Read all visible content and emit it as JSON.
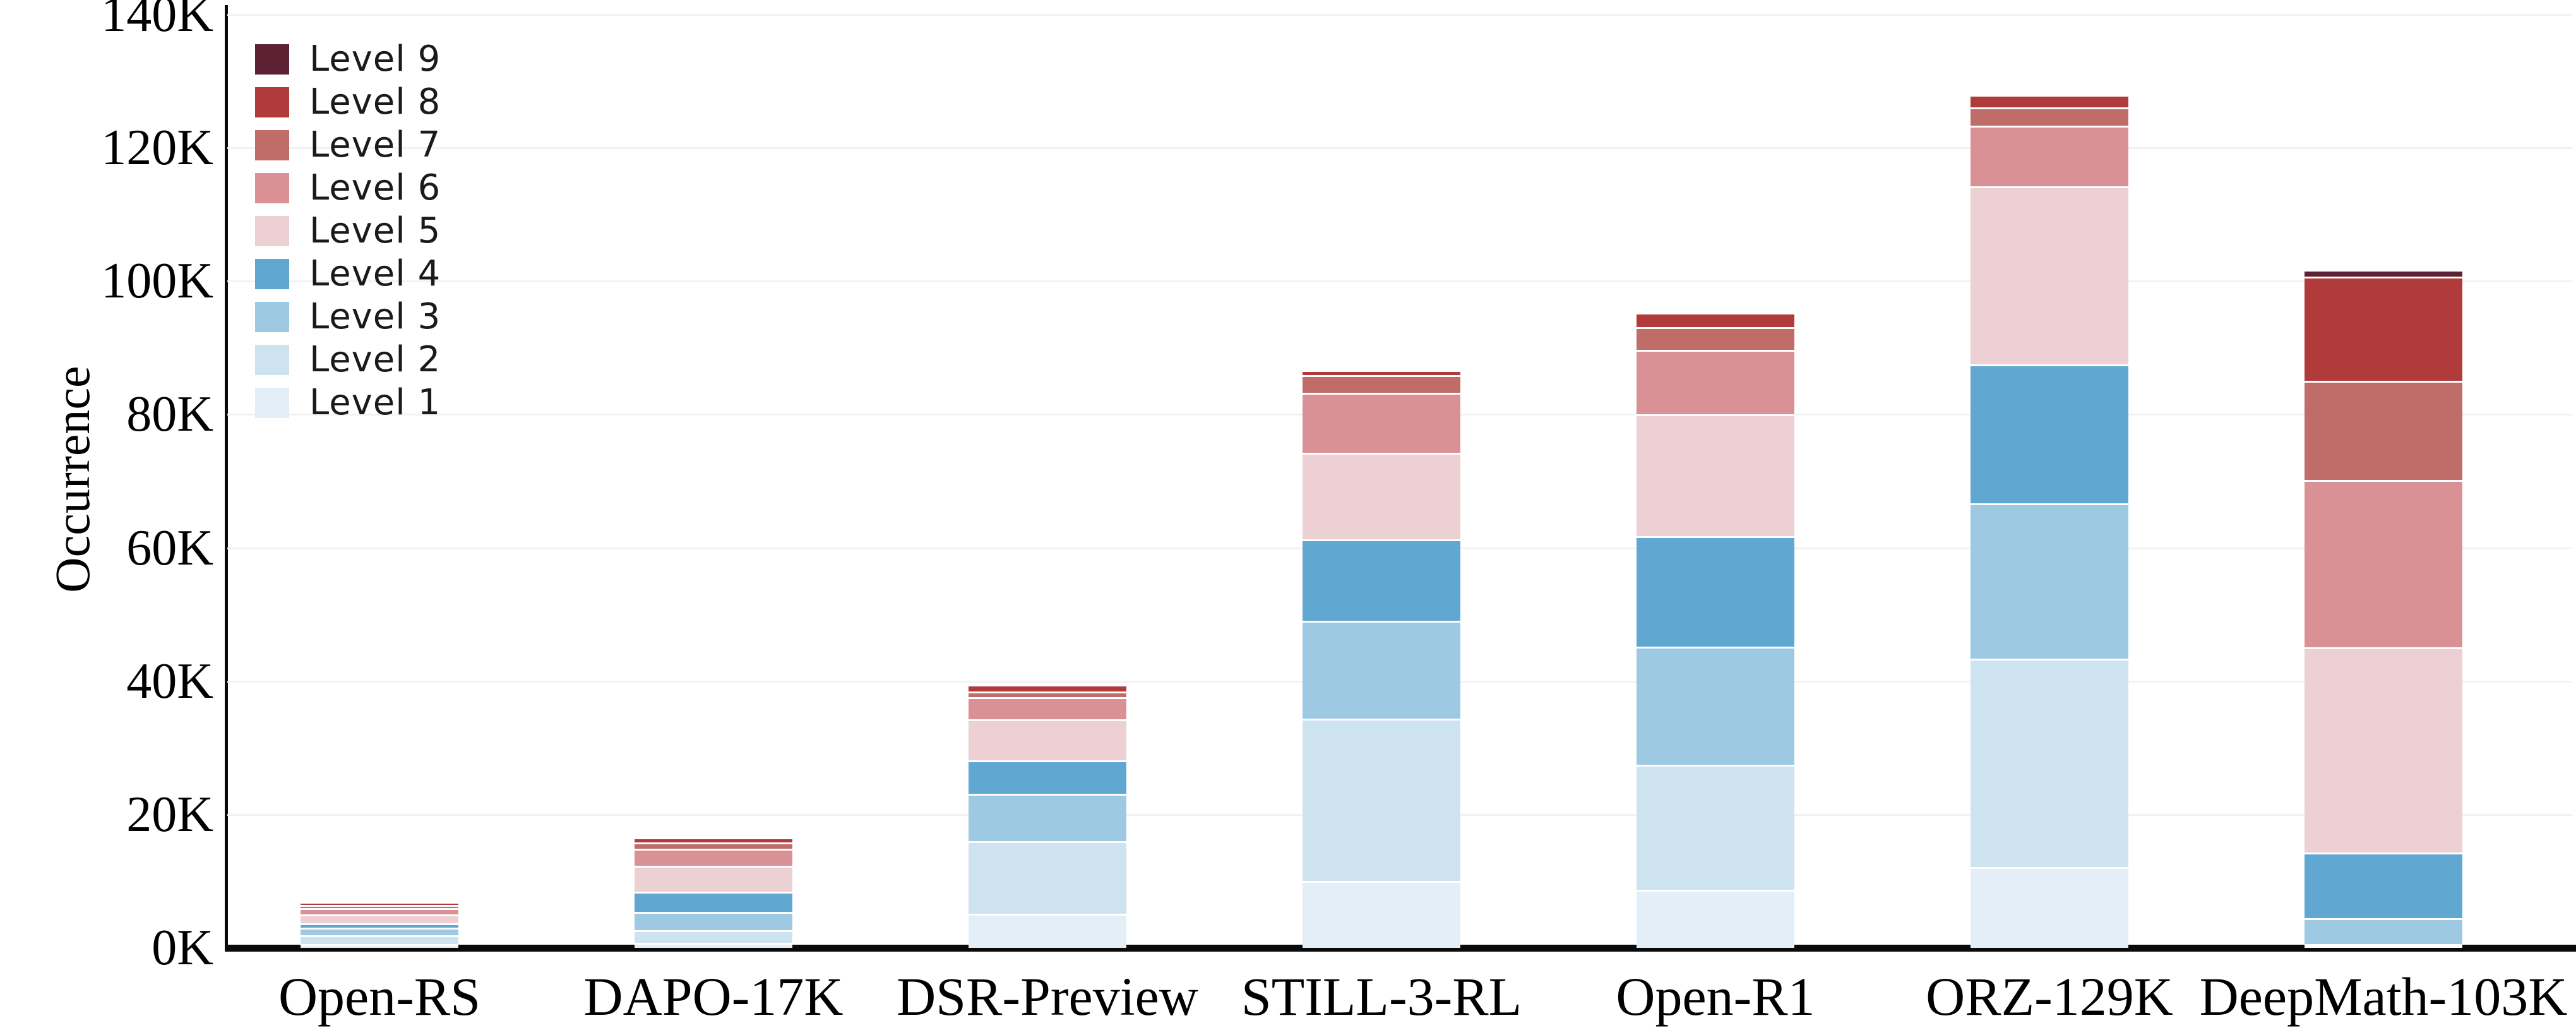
{
  "chart_data": {
    "type": "bar",
    "stacked": true,
    "title": "",
    "xlabel": "",
    "ylabel": "Occurrence",
    "unit": "K",
    "ylim": [
      0,
      140000
    ],
    "grid": "horizontal-faint",
    "legend_position": "top-left",
    "yticks": [
      "0K",
      "20K",
      "40K",
      "60K",
      "80K",
      "100K",
      "120K",
      "140K"
    ],
    "categories": [
      "Open-RS",
      "DAPO-17K",
      "DSR-Preview",
      "STILL-3-RL",
      "Open-R1",
      "ORZ-129K",
      "DeepMath-103K"
    ],
    "series": [
      {
        "name": "Level 1",
        "color": "#e3eef7",
        "values_k": [
          0.6,
          0.8,
          5.1,
          10.0,
          8.7,
          12.1,
          0.2
        ]
      },
      {
        "name": "Level 2",
        "color": "#cee3f0",
        "values_k": [
          1.3,
          1.9,
          10.9,
          24.4,
          18.8,
          31.3,
          0.3
        ]
      },
      {
        "name": "Level 3",
        "color": "#9dc9e2",
        "values_k": [
          1.1,
          2.7,
          7.1,
          14.7,
          17.7,
          23.3,
          3.9
        ]
      },
      {
        "name": "Level 4",
        "color": "#60a8d2",
        "values_k": [
          0.7,
          3.0,
          5.0,
          12.2,
          16.6,
          20.8,
          9.8
        ]
      },
      {
        "name": "Level 5",
        "color": "#ecd0d4",
        "values_k": [
          1.3,
          3.9,
          6.2,
          13.0,
          18.2,
          26.7,
          30.8
        ]
      },
      {
        "name": "Level 6",
        "color": "#d99196",
        "values_k": [
          1.0,
          2.6,
          3.3,
          9.0,
          9.7,
          9.1,
          25.1
        ]
      },
      {
        "name": "Level 7",
        "color": "#c06c68",
        "values_k": [
          0.4,
          0.9,
          0.9,
          2.6,
          3.4,
          2.8,
          14.9
        ]
      },
      {
        "name": "Level 8",
        "color": "#b13a3a",
        "values_k": [
          0.5,
          0.8,
          1.0,
          0.8,
          2.2,
          1.9,
          15.6
        ]
      },
      {
        "name": "Level 9",
        "color": "#5e2033",
        "values_k": [
          0.0,
          0.0,
          0.0,
          0.0,
          0.0,
          0.0,
          1.1
        ]
      }
    ],
    "totals_k": [
      6.9,
      16.6,
      39.5,
      86.7,
      95.3,
      128.0,
      101.7
    ],
    "legend_entries_top_to_bottom": [
      "Level 9",
      "Level 8",
      "Level 7",
      "Level 6",
      "Level 5",
      "Level 4",
      "Level 3",
      "Level 2",
      "Level 1"
    ]
  },
  "axis": {
    "y_title": "Occurrence"
  }
}
